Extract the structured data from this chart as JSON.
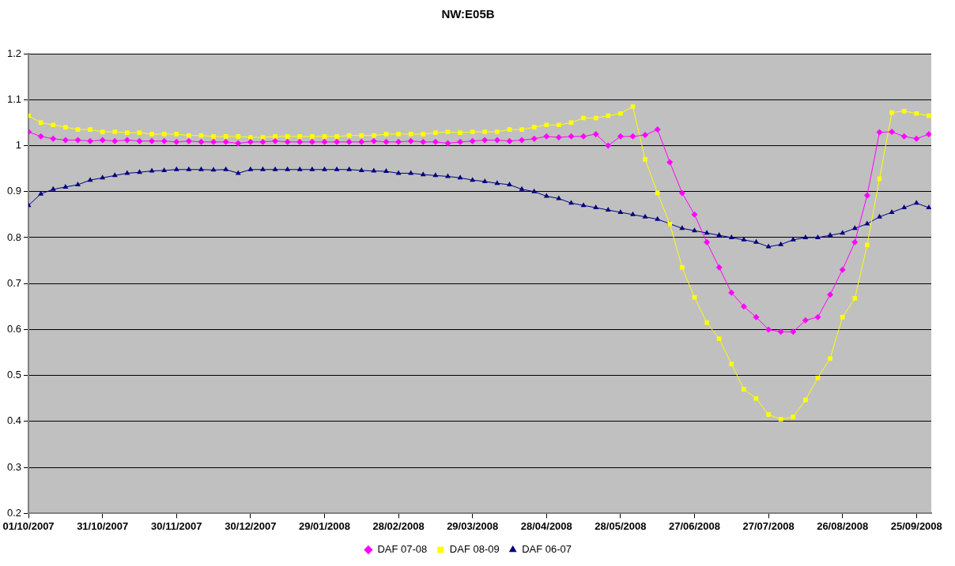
{
  "chart_data": {
    "type": "line",
    "title": "NW:E05B",
    "legend": "bottom",
    "grid": "y",
    "line_style": "solid",
    "xlim": [
      "2007-10-01",
      "2008-10-01"
    ],
    "xticks": [
      {
        "value": "2007-10-01",
        "label": "01/10/2007"
      },
      {
        "value": "2007-10-31",
        "label": "31/10/2007"
      },
      {
        "value": "2007-11-30",
        "label": "30/11/2007"
      },
      {
        "value": "2007-12-30",
        "label": "30/12/2007"
      },
      {
        "value": "2008-01-29",
        "label": "29/01/2008"
      },
      {
        "value": "2008-02-28",
        "label": "28/02/2008"
      },
      {
        "value": "2008-03-29",
        "label": "29/03/2008"
      },
      {
        "value": "2008-04-28",
        "label": "28/04/2008"
      },
      {
        "value": "2008-05-28",
        "label": "28/05/2008"
      },
      {
        "value": "2008-06-27",
        "label": "27/06/2008"
      },
      {
        "value": "2008-07-27",
        "label": "27/07/2008"
      },
      {
        "value": "2008-08-26",
        "label": "26/08/2008"
      },
      {
        "value": "2008-09-25",
        "label": "25/09/2008"
      }
    ],
    "ylim": [
      0.2,
      1.2
    ],
    "yticks": [
      0.2,
      0.3,
      0.4,
      0.5,
      0.6,
      0.7,
      0.8,
      0.9,
      1,
      1.1,
      1.2
    ],
    "x": [
      "2007-10-01",
      "2007-10-06",
      "2007-10-11",
      "2007-10-16",
      "2007-10-21",
      "2007-10-26",
      "2007-10-31",
      "2007-11-05",
      "2007-11-10",
      "2007-11-15",
      "2007-11-20",
      "2007-11-25",
      "2007-11-30",
      "2007-12-05",
      "2007-12-10",
      "2007-12-15",
      "2007-12-20",
      "2007-12-25",
      "2007-12-30",
      "2008-01-04",
      "2008-01-09",
      "2008-01-14",
      "2008-01-19",
      "2008-01-24",
      "2008-01-29",
      "2008-02-03",
      "2008-02-08",
      "2008-02-13",
      "2008-02-18",
      "2008-02-23",
      "2008-02-28",
      "2008-03-04",
      "2008-03-09",
      "2008-03-14",
      "2008-03-19",
      "2008-03-24",
      "2008-03-29",
      "2008-04-03",
      "2008-04-08",
      "2008-04-13",
      "2008-04-18",
      "2008-04-23",
      "2008-04-28",
      "2008-05-03",
      "2008-05-08",
      "2008-05-13",
      "2008-05-18",
      "2008-05-23",
      "2008-05-28",
      "2008-06-02",
      "2008-06-07",
      "2008-06-12",
      "2008-06-17",
      "2008-06-22",
      "2008-06-27",
      "2008-07-02",
      "2008-07-07",
      "2008-07-12",
      "2008-07-17",
      "2008-07-22",
      "2008-07-27",
      "2008-08-01",
      "2008-08-06",
      "2008-08-11",
      "2008-08-16",
      "2008-08-21",
      "2008-08-26",
      "2008-08-31",
      "2008-09-05",
      "2008-09-10",
      "2008-09-15",
      "2008-09-20",
      "2008-09-25",
      "2008-09-30"
    ],
    "series": [
      {
        "name": "DAF 07-08",
        "color": "#ff00ff",
        "marker": "diamond",
        "values": [
          1.03,
          1.02,
          1.015,
          1.012,
          1.012,
          1.01,
          1.012,
          1.01,
          1.012,
          1.01,
          1.01,
          1.01,
          1.008,
          1.01,
          1.008,
          1.008,
          1.008,
          1.005,
          1.008,
          1.008,
          1.01,
          1.008,
          1.008,
          1.008,
          1.008,
          1.008,
          1.008,
          1.008,
          1.01,
          1.008,
          1.008,
          1.01,
          1.008,
          1.008,
          1.005,
          1.008,
          1.01,
          1.012,
          1.012,
          1.01,
          1.012,
          1.015,
          1.02,
          1.018,
          1.02,
          1.02,
          1.025,
          1.0,
          1.02,
          1.02,
          1.023,
          1.035,
          0.964,
          0.897,
          0.85,
          0.79,
          0.735,
          0.68,
          0.65,
          0.627,
          0.6,
          0.595,
          0.595,
          0.62,
          0.627,
          0.676,
          0.73,
          0.79,
          0.892,
          1.029,
          1.03,
          1.02,
          1.015,
          1.025
        ]
      },
      {
        "name": "DAF 08-09",
        "color": "#ffff00",
        "marker": "square",
        "values": [
          1.065,
          1.05,
          1.045,
          1.04,
          1.035,
          1.035,
          1.03,
          1.03,
          1.028,
          1.028,
          1.025,
          1.025,
          1.025,
          1.022,
          1.022,
          1.02,
          1.02,
          1.02,
          1.018,
          1.018,
          1.02,
          1.02,
          1.02,
          1.02,
          1.02,
          1.02,
          1.022,
          1.022,
          1.022,
          1.025,
          1.025,
          1.025,
          1.025,
          1.028,
          1.03,
          1.028,
          1.03,
          1.03,
          1.03,
          1.035,
          1.035,
          1.04,
          1.045,
          1.045,
          1.05,
          1.06,
          1.06,
          1.065,
          1.07,
          1.085,
          0.97,
          0.897,
          0.83,
          0.735,
          0.67,
          0.615,
          0.58,
          0.525,
          0.47,
          0.45,
          0.415,
          0.405,
          0.41,
          0.447,
          0.495,
          0.537,
          0.627,
          0.668,
          0.784,
          0.928,
          1.072,
          1.075,
          1.07,
          1.065
        ]
      },
      {
        "name": "DAF 06-07",
        "color": "#000080",
        "marker": "triangle",
        "values": [
          0.87,
          0.895,
          0.905,
          0.91,
          0.915,
          0.925,
          0.93,
          0.935,
          0.94,
          0.942,
          0.945,
          0.946,
          0.948,
          0.948,
          0.948,
          0.947,
          0.948,
          0.94,
          0.948,
          0.948,
          0.948,
          0.948,
          0.948,
          0.948,
          0.948,
          0.948,
          0.948,
          0.946,
          0.945,
          0.944,
          0.94,
          0.94,
          0.937,
          0.935,
          0.933,
          0.93,
          0.925,
          0.922,
          0.918,
          0.915,
          0.905,
          0.9,
          0.89,
          0.885,
          0.875,
          0.87,
          0.865,
          0.86,
          0.855,
          0.85,
          0.845,
          0.84,
          0.83,
          0.82,
          0.815,
          0.81,
          0.805,
          0.8,
          0.795,
          0.79,
          0.78,
          0.785,
          0.795,
          0.8,
          0.8,
          0.805,
          0.81,
          0.82,
          0.83,
          0.845,
          0.855,
          0.865,
          0.875,
          0.865
        ]
      }
    ]
  }
}
